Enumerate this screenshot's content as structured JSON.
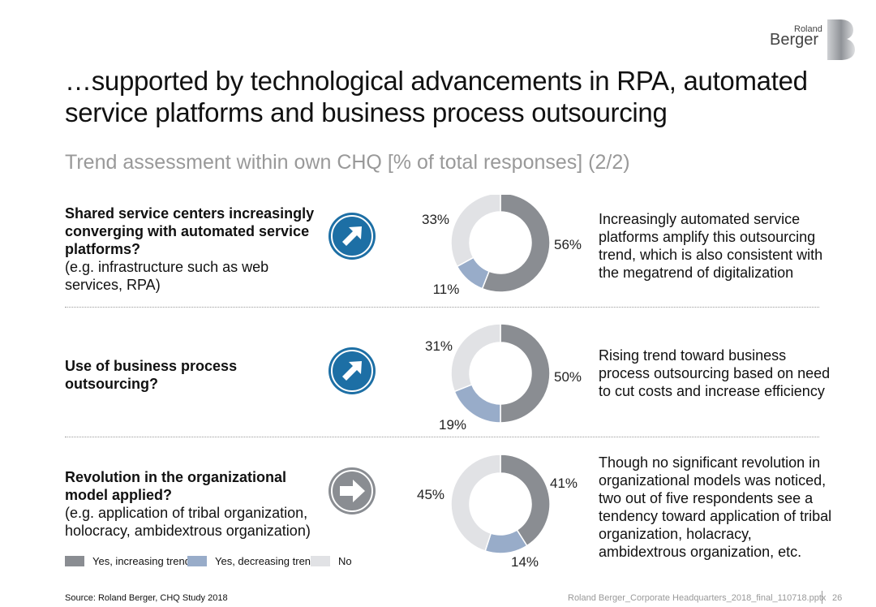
{
  "brand": {
    "line1": "Roland",
    "line2": "Berger"
  },
  "title": "…supported by technological advancements in RPA, automated service platforms and business process outsourcing",
  "subtitle": "Trend assessment within own CHQ [% of total responses] (2/2)",
  "rows": [
    {
      "question_bold": "Shared service centers increasingly converging with automated service platforms?",
      "question_note": "(e.g. infrastructure such as web services, RPA)",
      "trend_icon": "arrow-up-right-icon",
      "comment": "Increasingly automated service platforms amplify this outsourcing trend, which is also consistent with the megatrend of digitalization"
    },
    {
      "question_bold": "Use of business process outsourcing?",
      "question_note": "",
      "trend_icon": "arrow-up-right-icon",
      "comment": "Rising trend toward business process outsourcing based on need to cut costs and increase efficiency"
    },
    {
      "question_bold": "Revolution in the organizational model applied?",
      "question_note": "(e.g. application of tribal organization, holocracy, ambidextrous organization)",
      "trend_icon": "arrow-right-icon",
      "comment": "Though no significant revolution in organizational models was noticed, two out of five respondents see a tendency toward application of tribal organization, holacracy, ambidextrous organization, etc."
    }
  ],
  "colors": {
    "increasing": "#8a8d92",
    "decreasing": "#98acc9",
    "no": "#e1e2e5",
    "accent": "#1d6fa5",
    "neutral": "#8a8d92"
  },
  "chart_data": [
    {
      "type": "pie",
      "categories": [
        "Yes, increasing trend",
        "Yes, decreasing trend",
        "No"
      ],
      "values": [
        56,
        11,
        33
      ],
      "labels": [
        "56%",
        "11%",
        "33%"
      ]
    },
    {
      "type": "pie",
      "categories": [
        "Yes, increasing trend",
        "Yes, decreasing trend",
        "No"
      ],
      "values": [
        50,
        19,
        31
      ],
      "labels": [
        "50%",
        "19%",
        "31%"
      ]
    },
    {
      "type": "pie",
      "categories": [
        "Yes, increasing trend",
        "Yes, decreasing trend",
        "No"
      ],
      "values": [
        41,
        14,
        45
      ],
      "labels": [
        "41%",
        "14%",
        "45%"
      ]
    }
  ],
  "legend": [
    "Yes, increasing trend",
    "Yes, decreasing trend",
    "No"
  ],
  "source": "Source: Roland Berger, CHQ Study 2018",
  "footer_file": "Roland Berger_Corporate Headquarters_2018_final_110718.pptx",
  "page_number": "26"
}
